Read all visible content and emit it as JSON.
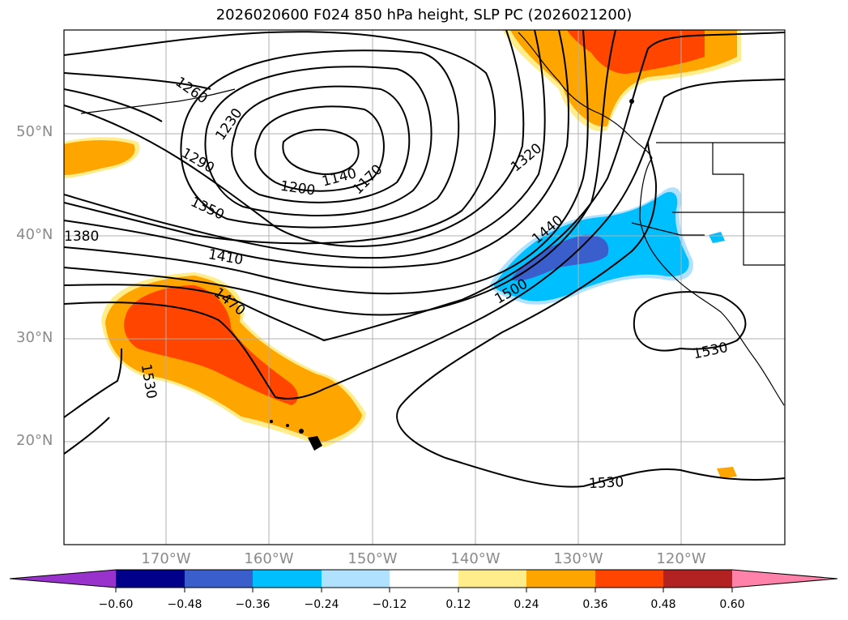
{
  "title": "2026020600 F024 850 hPa height, SLP PC (2026021200)",
  "lat_labels": [
    "50°N",
    "40°N",
    "30°N",
    "20°N"
  ],
  "lon_labels": [
    "170°W",
    "160°W",
    "150°W",
    "140°W",
    "130°W",
    "120°W"
  ],
  "contour_labels": [
    "1260",
    "1230",
    "1200",
    "1140",
    "1170",
    "1290",
    "1350",
    "1380",
    "1410",
    "1470",
    "1530",
    "1320",
    "1440",
    "1500",
    "1530",
    "1530"
  ],
  "colorbar": {
    "ticks": [
      "−0.60",
      "−0.48",
      "−0.36",
      "−0.24",
      "−0.12",
      "0.12",
      "0.24",
      "0.36",
      "0.48",
      "0.60"
    ],
    "colors": [
      "#9932cc",
      "#00008b",
      "#3a5fcd",
      "#00bfff",
      "#b0e2ff",
      "#ffffff",
      "#ffec8b",
      "#ffa500",
      "#ff4500",
      "#b22222",
      "#ff82ab"
    ]
  },
  "map": {
    "contour_interval": 30,
    "field_contoured": "850 hPa height",
    "field_shaded": "SLP PC"
  }
}
